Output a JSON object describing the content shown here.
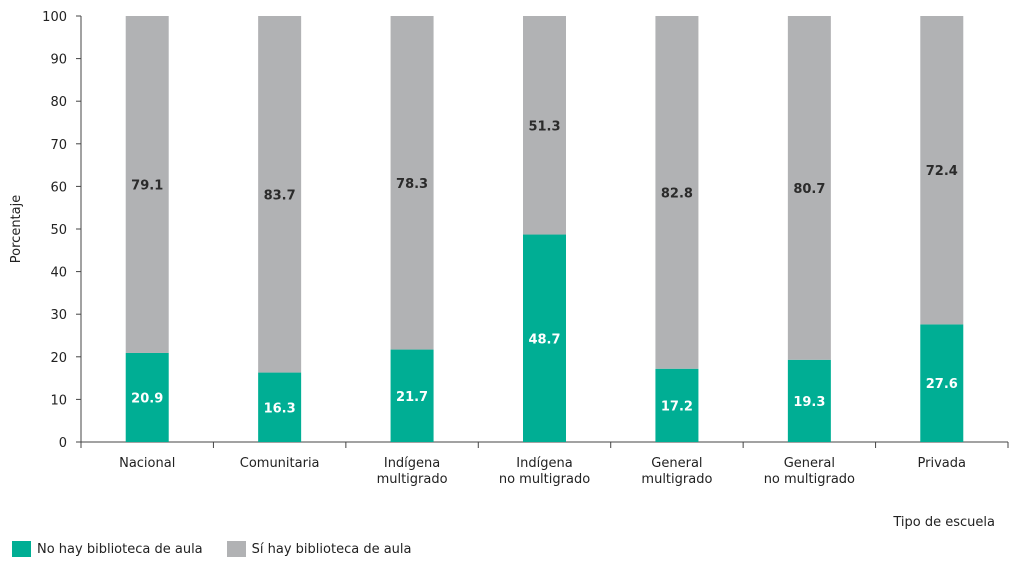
{
  "chart_data": {
    "type": "bar",
    "stacked": true,
    "categories": [
      [
        "Nacional"
      ],
      [
        "Comunitaria"
      ],
      [
        "Indígena",
        "multigrado"
      ],
      [
        "Indígena",
        "no multigrado"
      ],
      [
        "General",
        "multigrado"
      ],
      [
        "General",
        "no multigrado"
      ],
      [
        "Privada"
      ]
    ],
    "series": [
      {
        "name": "No hay biblioteca de aula",
        "color": "#00ae94",
        "values": [
          20.9,
          16.3,
          21.7,
          48.7,
          17.2,
          19.3,
          27.6
        ]
      },
      {
        "name": "Sí hay biblioteca de aula",
        "color": "#b1b2b4",
        "values": [
          79.1,
          83.7,
          78.3,
          51.3,
          82.8,
          80.7,
          72.4
        ]
      }
    ],
    "ylabel": "Porcentaje",
    "xlabel": "Tipo de escuela",
    "ylim": [
      0,
      100
    ],
    "yticks": [
      0,
      10,
      20,
      30,
      40,
      50,
      60,
      70,
      80,
      90,
      100
    ],
    "grid": false,
    "legend_position": "bottom-left"
  }
}
